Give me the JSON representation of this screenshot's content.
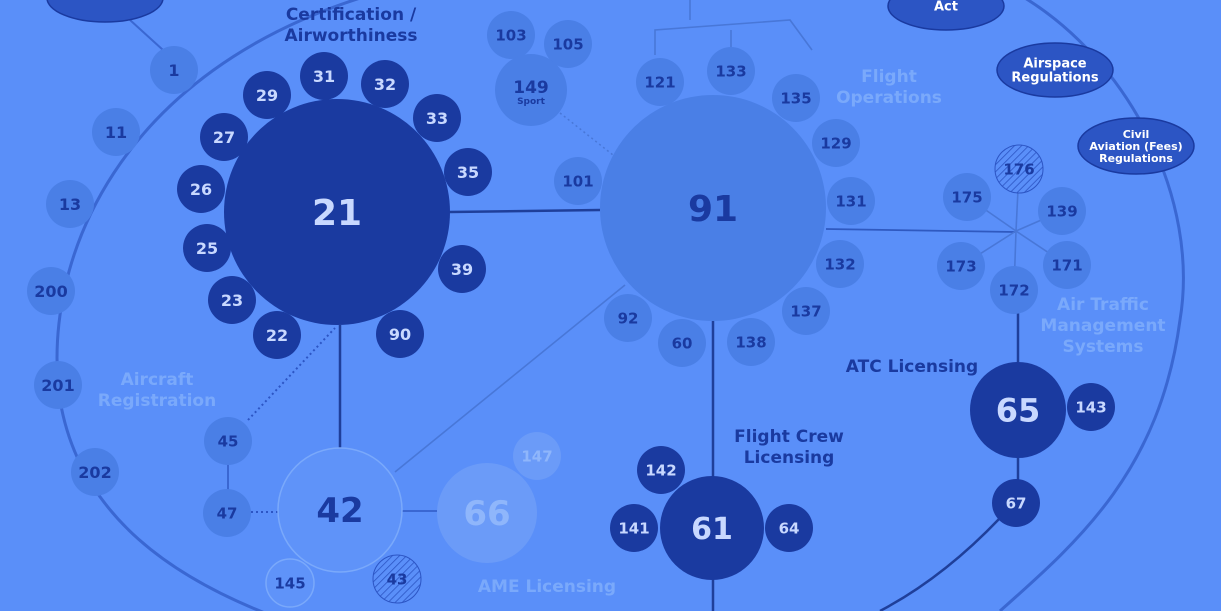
{
  "colors": {
    "background": "#5a8ff9",
    "dark": "#1a3aa0",
    "mid": "#2c55c4",
    "light": "#4a7fe6",
    "pale": "#6b9bf8",
    "line": "#1f3f9a",
    "labelDark": "#1a3aa0",
    "labelLight": "#7aa9fb"
  },
  "labels": {
    "cert": [
      "Certification /",
      "Airworthiness"
    ],
    "flightOps": [
      "Flight",
      "Operations"
    ],
    "airspace": [
      "Airspace",
      "Regulations"
    ],
    "fees": [
      "Civil",
      "Aviation (Fees)",
      "Regulations"
    ],
    "act": "Act",
    "atm": [
      "Air Traffic",
      "Management",
      "Systems"
    ],
    "atc": "ATC Licensing",
    "registration": [
      "Aircraft",
      "Registration"
    ],
    "flightCrew": [
      "Flight Crew",
      "Licensing"
    ],
    "ame": "AME Licensing",
    "sport": "Sport"
  },
  "nodes": [
    {
      "id": "n21",
      "label": "21",
      "tone": "dark"
    },
    {
      "id": "n91",
      "label": "91",
      "tone": "light"
    },
    {
      "id": "n42",
      "label": "42",
      "tone": "outline"
    },
    {
      "id": "n66",
      "label": "66",
      "tone": "pale"
    },
    {
      "id": "n61",
      "label": "61",
      "tone": "dark"
    },
    {
      "id": "n65",
      "label": "65",
      "tone": "dark"
    },
    {
      "id": "n1",
      "label": "1",
      "tone": "light"
    },
    {
      "id": "n11",
      "label": "11",
      "tone": "light"
    },
    {
      "id": "n13",
      "label": "13",
      "tone": "light"
    },
    {
      "id": "n200",
      "label": "200",
      "tone": "light"
    },
    {
      "id": "n201",
      "label": "201",
      "tone": "light"
    },
    {
      "id": "n202",
      "label": "202",
      "tone": "light"
    },
    {
      "id": "n31",
      "label": "31",
      "tone": "dark"
    },
    {
      "id": "n32",
      "label": "32",
      "tone": "dark"
    },
    {
      "id": "n29",
      "label": "29",
      "tone": "dark"
    },
    {
      "id": "n33",
      "label": "33",
      "tone": "dark"
    },
    {
      "id": "n27",
      "label": "27",
      "tone": "dark"
    },
    {
      "id": "n35",
      "label": "35",
      "tone": "dark"
    },
    {
      "id": "n26",
      "label": "26",
      "tone": "dark"
    },
    {
      "id": "n25",
      "label": "25",
      "tone": "dark"
    },
    {
      "id": "n39",
      "label": "39",
      "tone": "dark"
    },
    {
      "id": "n23",
      "label": "23",
      "tone": "dark"
    },
    {
      "id": "n22",
      "label": "22",
      "tone": "dark"
    },
    {
      "id": "n90",
      "label": "90",
      "tone": "dark"
    },
    {
      "id": "n103",
      "label": "103",
      "tone": "light"
    },
    {
      "id": "n105",
      "label": "105",
      "tone": "light"
    },
    {
      "id": "n149",
      "label": "149",
      "tone": "light"
    },
    {
      "id": "n101",
      "label": "101",
      "tone": "light"
    },
    {
      "id": "n121",
      "label": "121",
      "tone": "light"
    },
    {
      "id": "n133",
      "label": "133",
      "tone": "light"
    },
    {
      "id": "n135",
      "label": "135",
      "tone": "light"
    },
    {
      "id": "n129",
      "label": "129",
      "tone": "light"
    },
    {
      "id": "n131",
      "label": "131",
      "tone": "light"
    },
    {
      "id": "n132",
      "label": "132",
      "tone": "light"
    },
    {
      "id": "n137",
      "label": "137",
      "tone": "light"
    },
    {
      "id": "n138",
      "label": "138",
      "tone": "light"
    },
    {
      "id": "n60",
      "label": "60",
      "tone": "light"
    },
    {
      "id": "n92",
      "label": "92",
      "tone": "light"
    },
    {
      "id": "n176",
      "label": "176",
      "tone": "hatch"
    },
    {
      "id": "n175",
      "label": "175",
      "tone": "light"
    },
    {
      "id": "n139",
      "label": "139",
      "tone": "light"
    },
    {
      "id": "n173",
      "label": "173",
      "tone": "light"
    },
    {
      "id": "n171",
      "label": "171",
      "tone": "light"
    },
    {
      "id": "n172",
      "label": "172",
      "tone": "light"
    },
    {
      "id": "n143",
      "label": "143",
      "tone": "dark"
    },
    {
      "id": "n67",
      "label": "67",
      "tone": "dark"
    },
    {
      "id": "n142",
      "label": "142",
      "tone": "dark"
    },
    {
      "id": "n141",
      "label": "141",
      "tone": "dark"
    },
    {
      "id": "n64",
      "label": "64",
      "tone": "dark"
    },
    {
      "id": "n45",
      "label": "45",
      "tone": "light"
    },
    {
      "id": "n47",
      "label": "47",
      "tone": "light"
    },
    {
      "id": "n145",
      "label": "145",
      "tone": "outline"
    },
    {
      "id": "n43",
      "label": "43",
      "tone": "hatch"
    },
    {
      "id": "n147",
      "label": "147",
      "tone": "pale"
    }
  ]
}
